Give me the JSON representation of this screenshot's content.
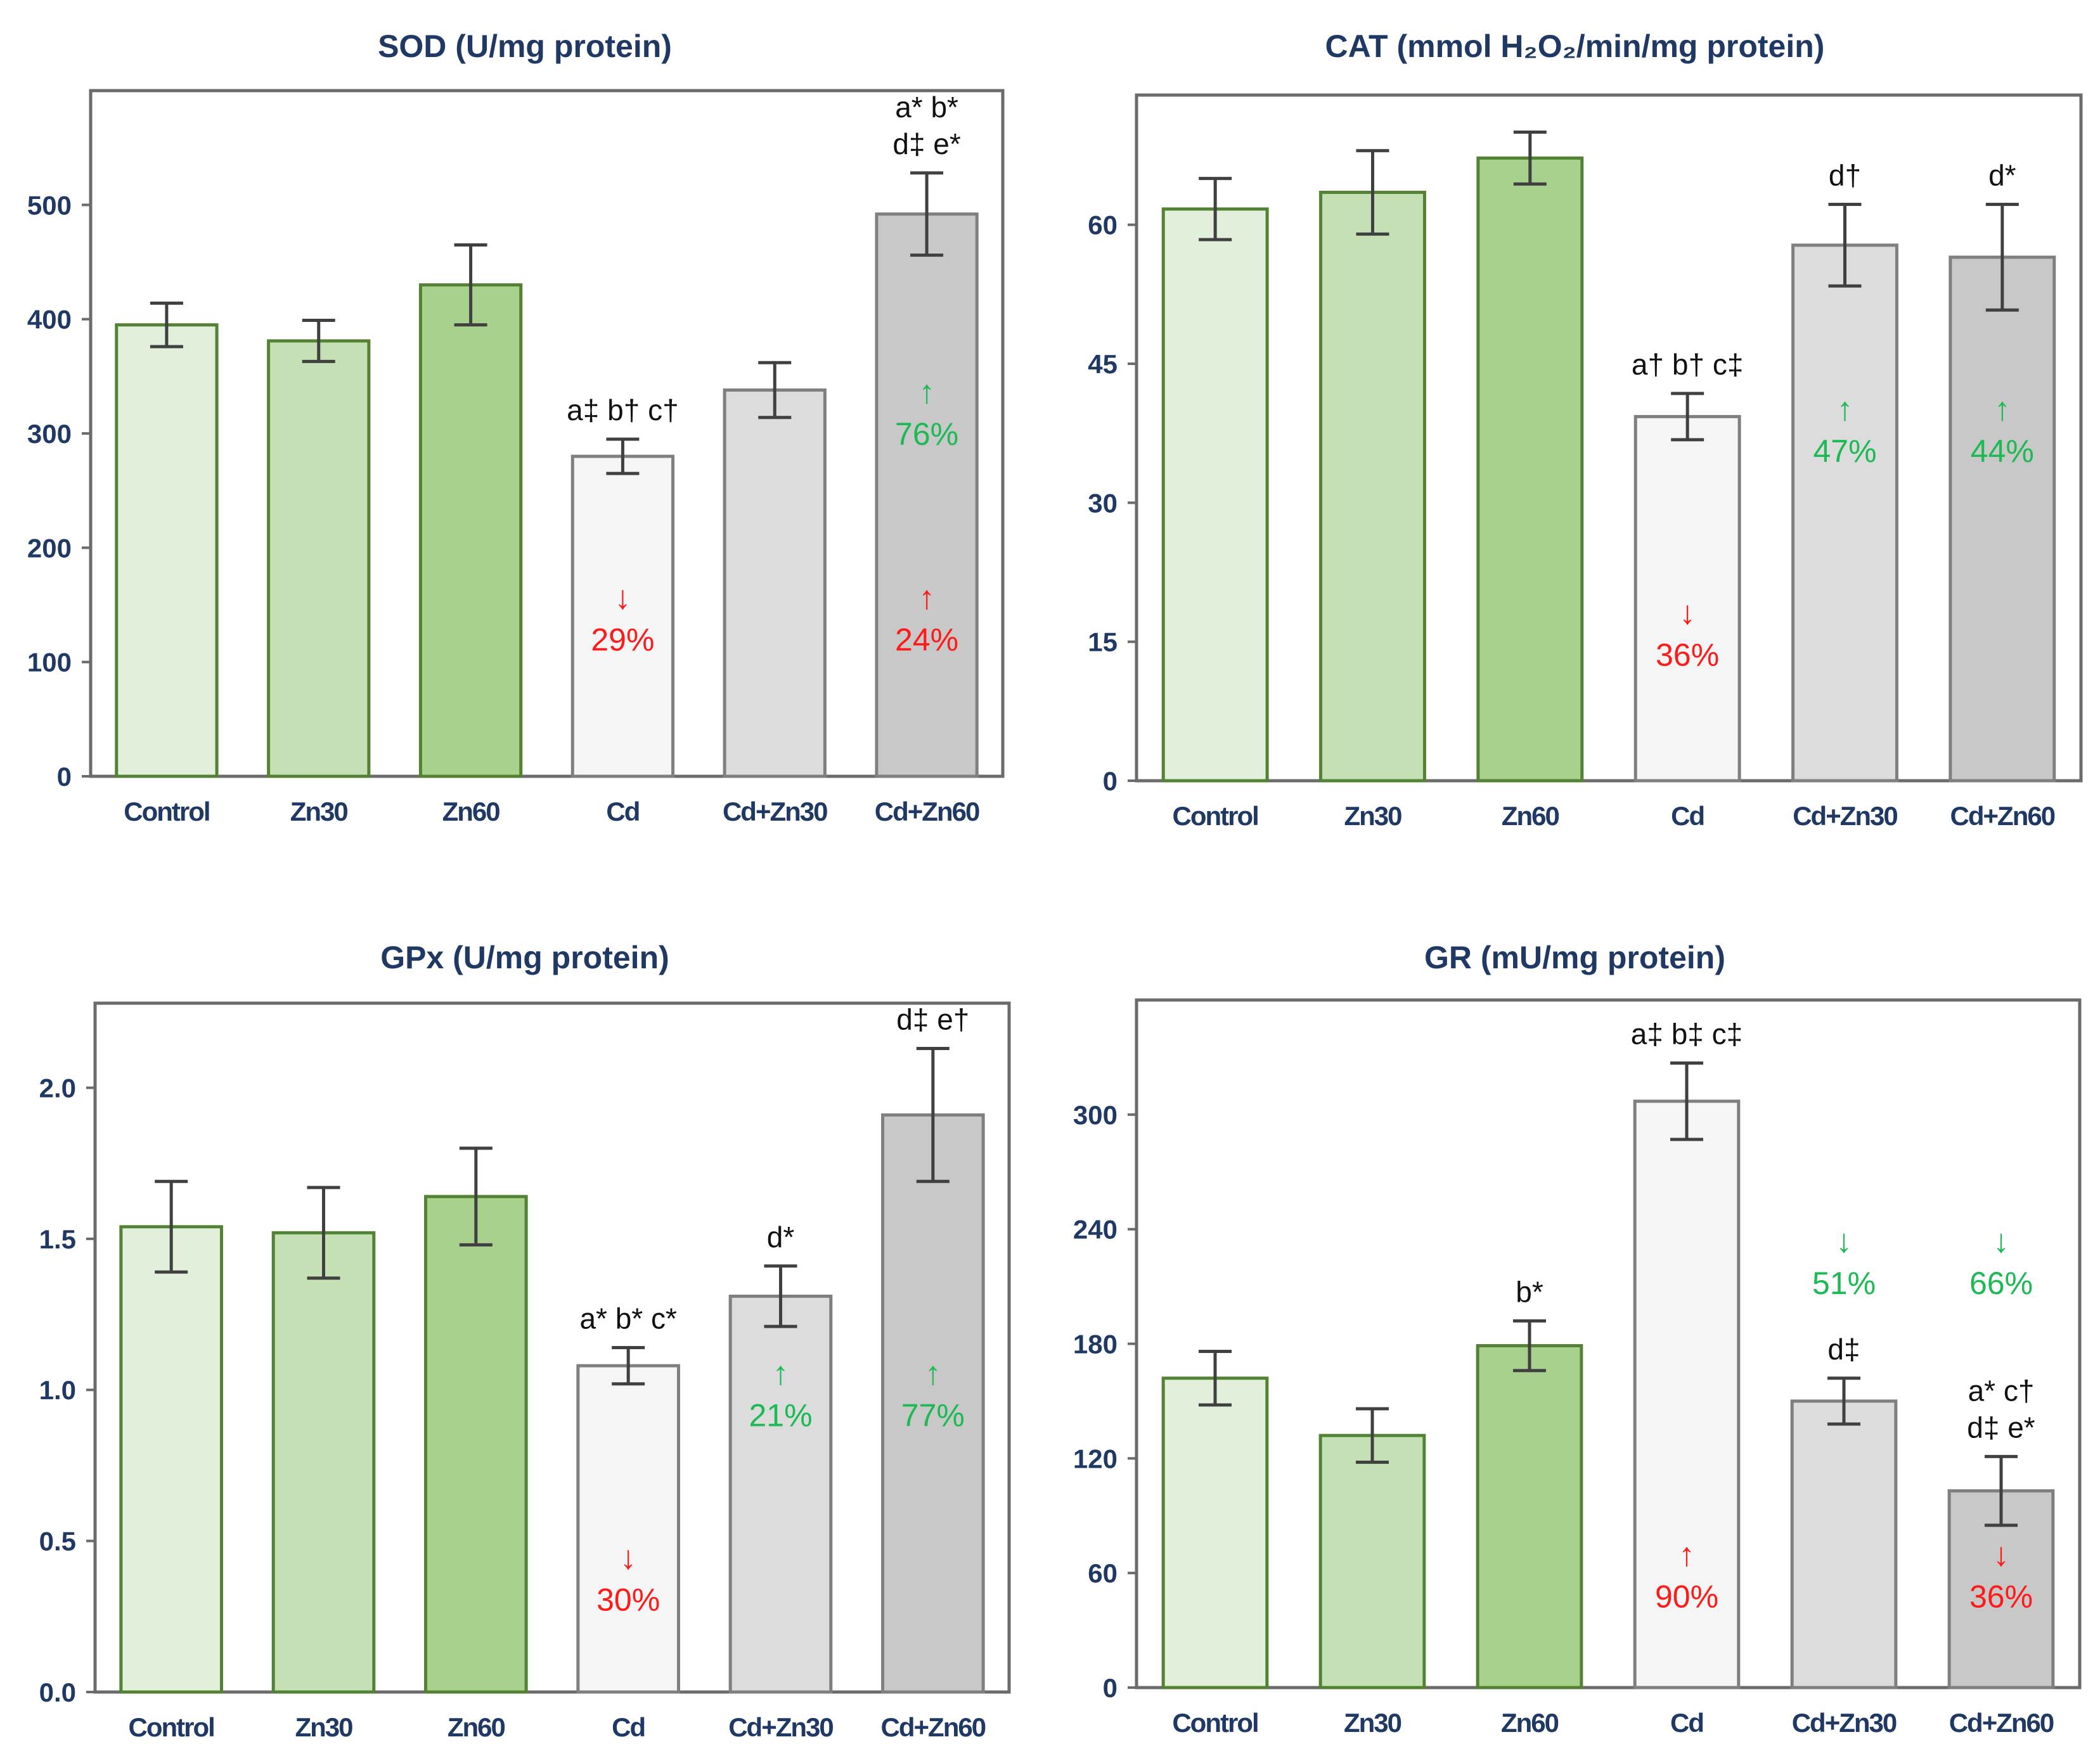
{
  "colors": {
    "axis_text": "#1f3864",
    "frame": "#6b6b6b",
    "error_bar": "#404040",
    "increase_red": "#ff1a1a",
    "decrease_green": "#1db954",
    "bar_fills": [
      "#e2efda",
      "#c5e0b4",
      "#a9d18e",
      "#f5f5f5",
      "#dcdcdc",
      "#c8c8c8"
    ],
    "bar_strokes": [
      "#548235",
      "#548235",
      "#548235",
      "#7f7f7f",
      "#7f7f7f",
      "#7f7f7f"
    ]
  },
  "chart_data": [
    {
      "type": "bar",
      "title": "SOD (U/mg protein)",
      "categories": [
        "Control",
        "Zn30",
        "Zn60",
        "Cd",
        "Cd+Zn30",
        "Cd+Zn60"
      ],
      "values": [
        395,
        381,
        430,
        280,
        338,
        492
      ],
      "errors": [
        19,
        18,
        35,
        15,
        24,
        36
      ],
      "ylim": [
        0,
        600
      ],
      "yticks": [
        "0",
        "100",
        "200",
        "300",
        "400",
        "500"
      ],
      "significance": [
        [],
        [],
        [],
        [
          "a‡ b† c†"
        ],
        [],
        [
          "a* b*",
          "d‡ e*"
        ]
      ],
      "annotations": [
        {
          "bar": 3,
          "arrow": "↓",
          "text": "29%",
          "color": "red",
          "level": 110
        },
        {
          "bar": 5,
          "arrow": "↑",
          "text": "24%",
          "color": "red",
          "level": 110
        },
        {
          "bar": 5,
          "arrow": "↑",
          "text": "76%",
          "color": "green",
          "level": 290
        }
      ]
    },
    {
      "type": "bar",
      "title": "CAT (mmol H₂O₂/min/mg protein)",
      "categories": [
        "Control",
        "Zn30",
        "Zn60",
        "Cd",
        "Cd+Zn30",
        "Cd+Zn60"
      ],
      "values": [
        61.7,
        63.5,
        67.2,
        39.3,
        57.8,
        56.5
      ],
      "errors": [
        3.3,
        4.5,
        2.8,
        2.5,
        4.4,
        5.7
      ],
      "ylim": [
        0,
        74
      ],
      "yticks": [
        "0",
        "15",
        "30",
        "45",
        "60"
      ],
      "significance": [
        [],
        [],
        [],
        [
          "a† b† c‡"
        ],
        [
          "d†"
        ],
        [
          "d*"
        ]
      ],
      "annotations": [
        {
          "bar": 3,
          "arrow": "↓",
          "text": "36%",
          "color": "red",
          "level": 12.4
        },
        {
          "bar": 4,
          "arrow": "↑",
          "text": "47%",
          "color": "green",
          "level": 34.4
        },
        {
          "bar": 5,
          "arrow": "↑",
          "text": "44%",
          "color": "green",
          "level": 34.4
        }
      ]
    },
    {
      "type": "bar",
      "title": "GPx (U/mg protein)",
      "categories": [
        "Control",
        "Zn30",
        "Zn60",
        "Cd",
        "Cd+Zn30",
        "Cd+Zn60"
      ],
      "values": [
        1.54,
        1.52,
        1.64,
        1.08,
        1.31,
        1.91
      ],
      "errors": [
        0.15,
        0.15,
        0.16,
        0.06,
        0.1,
        0.22
      ],
      "ylim": [
        0,
        2.28
      ],
      "yticks": [
        "0.0",
        "0.5",
        "1.0",
        "1.5",
        "2.0"
      ],
      "significance": [
        [],
        [],
        [],
        [
          "a* b* c*"
        ],
        [
          "d*"
        ],
        [
          "d‡ e†"
        ]
      ],
      "annotations": [
        {
          "bar": 3,
          "arrow": "↓",
          "text": "30%",
          "color": "red",
          "level": 0.27
        },
        {
          "bar": 4,
          "arrow": "↑",
          "text": "21%",
          "color": "green",
          "level": 0.88
        },
        {
          "bar": 5,
          "arrow": "↑",
          "text": "77%",
          "color": "green",
          "level": 0.88
        }
      ]
    },
    {
      "type": "bar",
      "title": "GR (mU/mg protein)",
      "categories": [
        "Control",
        "Zn30",
        "Zn60",
        "Cd",
        "Cd+Zn30",
        "Cd+Zn60"
      ],
      "values": [
        162,
        132,
        179,
        307,
        150,
        103
      ],
      "errors": [
        14,
        14,
        13,
        20,
        12,
        18
      ],
      "ylim": [
        0,
        360
      ],
      "yticks": [
        "0",
        "60",
        "120",
        "180",
        "240",
        "300"
      ],
      "significance": [
        [],
        [],
        [
          "b*"
        ],
        [
          "a‡ b‡ c‡"
        ],
        [
          "d‡"
        ],
        [
          "a* c†",
          "d‡ e*"
        ]
      ],
      "annotations": [
        {
          "bar": 3,
          "arrow": "↑",
          "text": "90%",
          "color": "red",
          "level": 42
        },
        {
          "bar": 5,
          "arrow": "↓",
          "text": "36%",
          "color": "red",
          "level": 42
        },
        {
          "bar": 4,
          "arrow": "↓",
          "text": "51%",
          "color": "green",
          "level": 206
        },
        {
          "bar": 5,
          "arrow": "↓",
          "text": "66%",
          "color": "green",
          "level": 206
        }
      ]
    }
  ]
}
